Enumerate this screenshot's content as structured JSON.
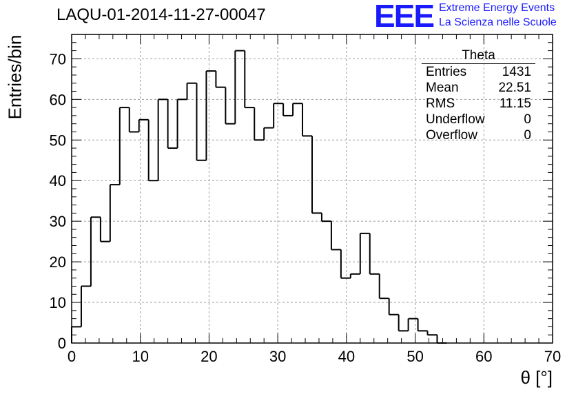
{
  "page_title": "LAQU-01-2014-11-27-00047",
  "logo": {
    "mark": "EEE",
    "line1": "Extreme Energy Events",
    "line2": "La Scienza nelle Scuole",
    "color": "#1a1aff"
  },
  "stats_box": {
    "title": "Theta",
    "rows": [
      {
        "label": "Entries",
        "value": "1431"
      },
      {
        "label": "Mean",
        "value": "22.51"
      },
      {
        "label": "RMS",
        "value": "11.15"
      },
      {
        "label": "Underflow",
        "value": "0"
      },
      {
        "label": "Overflow",
        "value": "0"
      }
    ]
  },
  "chart_data": {
    "type": "bar",
    "style": "step-histogram",
    "title": "LAQU-01-2014-11-27-00047",
    "xlabel": "θ [°]",
    "ylabel": "Entries/bin",
    "xlim": [
      0,
      70
    ],
    "ylim": [
      0,
      76
    ],
    "bin_width": 1.4,
    "bin_edges_start": 0,
    "values": [
      4,
      14,
      31,
      25,
      39,
      58,
      52,
      55,
      40,
      60,
      48,
      60,
      64,
      45,
      67,
      63,
      54,
      72,
      58,
      50,
      53,
      59,
      56,
      59,
      51,
      32,
      30,
      23,
      16,
      17,
      27,
      17,
      11,
      7,
      3,
      6,
      3,
      2,
      0
    ],
    "x_ticks": [
      "0",
      "10",
      "20",
      "30",
      "40",
      "50",
      "60",
      "70"
    ],
    "y_ticks": [
      "0",
      "10",
      "20",
      "30",
      "40",
      "50",
      "60",
      "70"
    ],
    "grid": true,
    "line_color": "#000000"
  }
}
